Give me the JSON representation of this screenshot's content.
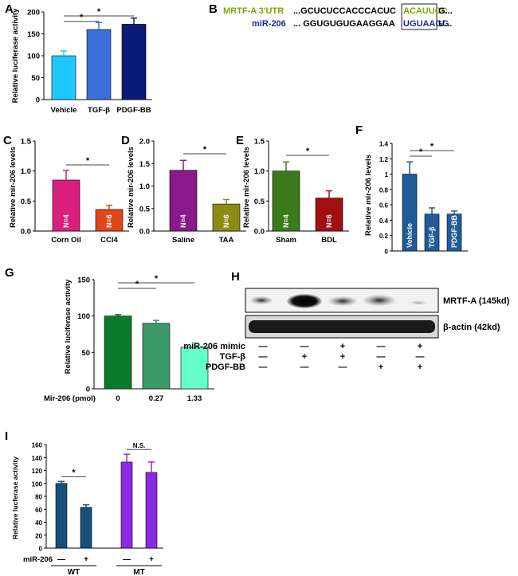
{
  "panel_labels": [
    "A",
    "B",
    "C",
    "D",
    "E",
    "F",
    "G",
    "H",
    "I"
  ],
  "chart_data": [
    {
      "panel": "A",
      "type": "bar",
      "ylabel": "Relative luciferase activity",
      "xlabel": "",
      "ylim": [
        0,
        200
      ],
      "yticks": [
        0,
        50,
        100,
        150,
        200
      ],
      "categories": [
        "Vehicle",
        "TGF-β",
        "PDGF-BB"
      ],
      "values": [
        100,
        160,
        172
      ],
      "errors": [
        11,
        16,
        14
      ],
      "colors": [
        "#1ec8ff",
        "#3a6fd8",
        "#0b1a78"
      ],
      "bar_labels": [
        "",
        "",
        ""
      ],
      "significance": [
        {
          "from": 0,
          "to": 1,
          "label": "*"
        },
        {
          "from": 0,
          "to": 2,
          "label": "*"
        }
      ]
    },
    {
      "panel": "C",
      "type": "bar",
      "ylabel": "Relative mir-206 levels",
      "xlabel": "",
      "ylim": [
        0,
        1.5
      ],
      "yticks": [
        0.0,
        0.5,
        1.0,
        1.5
      ],
      "categories": [
        "Corn Oil",
        "CCl4"
      ],
      "values": [
        0.85,
        0.36
      ],
      "errors": [
        0.16,
        0.07
      ],
      "colors": [
        "#d91e7d",
        "#e0451b"
      ],
      "bar_labels": [
        "N=4",
        "N=6"
      ],
      "significance": [
        {
          "from": 0,
          "to": 1,
          "label": "*"
        }
      ]
    },
    {
      "panel": "D",
      "type": "bar",
      "ylabel": "Relative mir-206 levels",
      "xlabel": "",
      "ylim": [
        0,
        2.0
      ],
      "yticks": [
        0.0,
        0.5,
        1.0,
        1.5,
        2.0
      ],
      "categories": [
        "Saline",
        "TAA"
      ],
      "values": [
        1.35,
        0.6
      ],
      "errors": [
        0.22,
        0.1
      ],
      "colors": [
        "#8a1a8a",
        "#8c8c14"
      ],
      "bar_labels": [
        "N=4",
        "N=6"
      ],
      "significance": [
        {
          "from": 0,
          "to": 1,
          "label": "*"
        }
      ]
    },
    {
      "panel": "E",
      "type": "bar",
      "ylabel": "Relative mir-206 levels",
      "xlabel": "",
      "ylim": [
        0,
        1.5
      ],
      "yticks": [
        0.0,
        0.5,
        1.0,
        1.5
      ],
      "categories": [
        "Sham",
        "BDL"
      ],
      "values": [
        1.0,
        0.55
      ],
      "errors": [
        0.15,
        0.12
      ],
      "colors": [
        "#3d7a1c",
        "#a30f0f"
      ],
      "bar_labels": [
        "N=4",
        "N=6"
      ],
      "significance": [
        {
          "from": 0,
          "to": 1,
          "label": "*"
        }
      ]
    },
    {
      "panel": "F",
      "type": "bar",
      "ylabel": "Relative mir-206 levels",
      "xlabel": "",
      "ylim": [
        0,
        1.4
      ],
      "yticks": [
        0,
        0.2,
        0.4,
        0.6,
        0.8,
        1,
        1.2,
        1.4
      ],
      "categories": [
        "",
        "",
        ""
      ],
      "values": [
        1.0,
        0.48,
        0.48
      ],
      "errors": [
        0.16,
        0.08,
        0.04
      ],
      "colors": [
        "#1f5c99",
        "#1f5c99",
        "#1f5c99"
      ],
      "bar_labels": [
        "Vehicle",
        "TGF-β",
        "PDGF-BB"
      ],
      "significance": [
        {
          "from": 0,
          "to": 1,
          "label": "*"
        },
        {
          "from": 0,
          "to": 2,
          "label": "*"
        }
      ]
    },
    {
      "panel": "G",
      "type": "bar",
      "ylabel": "Relative luciferase activity",
      "xlabel": "Mir-206 (pmol)",
      "ylim": [
        0,
        150
      ],
      "yticks": [
        0,
        50,
        100,
        150
      ],
      "categories": [
        "0",
        "0.27",
        "1.33"
      ],
      "values": [
        100,
        90,
        57
      ],
      "errors": [
        2,
        4,
        6
      ],
      "colors": [
        "#0b7a2a",
        "#3c9a6a",
        "#66ffcc"
      ],
      "bar_labels": [
        "",
        "",
        ""
      ],
      "significance": [
        {
          "from": 0,
          "to": 1,
          "label": "*"
        },
        {
          "from": 0,
          "to": 2,
          "label": "*"
        }
      ]
    },
    {
      "panel": "I",
      "type": "bar",
      "ylabel": "Relative lucferase activity",
      "xlabel": "",
      "ylim": [
        0,
        160
      ],
      "yticks": [
        0,
        20,
        40,
        60,
        80,
        100,
        120,
        140,
        160
      ],
      "categories": [
        "—",
        "+",
        "—",
        "+"
      ],
      "values": [
        100,
        63,
        133,
        117
      ],
      "errors": [
        3,
        4,
        12,
        16
      ],
      "colors": [
        "#1a4f7a",
        "#1a4f7a",
        "#8a2be2",
        "#8a2be2"
      ],
      "bar_labels": [
        "",
        "",
        "",
        ""
      ],
      "row_label": "miR-206",
      "groups": [
        {
          "name": "WT",
          "from": 0,
          "to": 1
        },
        {
          "name": "MT",
          "from": 2,
          "to": 3
        }
      ],
      "significance": [
        {
          "from": 0,
          "to": 1,
          "label": "*"
        },
        {
          "from": 2,
          "to": 3,
          "label": "N.S."
        }
      ]
    }
  ],
  "panel_b": {
    "rows": [
      {
        "name": "MRTF-A 3'UTR",
        "prefix": "...GCUCUCCACCCACUC",
        "boxed": "ACAUUCC",
        "suffix": "G...",
        "color": "#7fa500"
      },
      {
        "name": "miR-206",
        "prefix": "... GGUGUGUGAAGGAA",
        "boxed": "UGUAAGG",
        "suffix": "U...",
        "color": "#1a2a9a"
      }
    ]
  },
  "panel_h": {
    "bands": [
      "MRTF-A (145kd)",
      "β-actin (42kd)"
    ],
    "rows": [
      {
        "label": "miR-206 mimic",
        "signs": [
          "—",
          "—",
          "+",
          "—",
          "+"
        ]
      },
      {
        "label": "TGF-β",
        "signs": [
          "—",
          "+",
          "+",
          "—",
          "—"
        ]
      },
      {
        "label": "PDGF-BB",
        "signs": [
          "—",
          "—",
          "—",
          "+",
          "+"
        ]
      }
    ]
  }
}
